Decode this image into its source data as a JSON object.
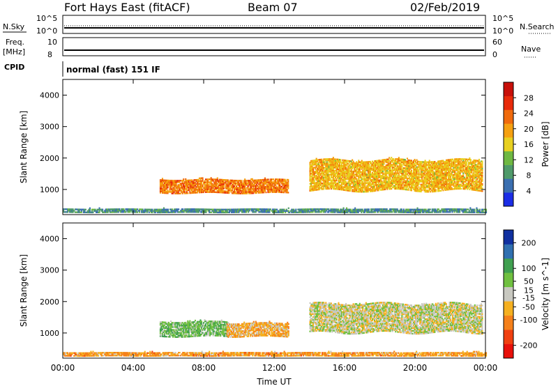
{
  "header": {
    "station": "Fort Hays East (fitACF)",
    "beam": "Beam 07",
    "date": "02/Feb/2019"
  },
  "params": {
    "nsky_label": "N.Sky",
    "nsky_ticks": [
      "10^5",
      "10^0"
    ],
    "nsearch_label": "N.Search",
    "freq_label_1": "Freq.",
    "freq_label_2": "[MHz]",
    "freq_ticks": [
      "10",
      "8"
    ],
    "nave_label": "Nave",
    "nave_ticks": [
      "60",
      "0"
    ],
    "cpid_label": "CPID",
    "cpid_value": "normal (fast) 151 IF"
  },
  "chart_data": [
    {
      "type": "heatmap",
      "panel": "power",
      "ylabel": "Slant Range [km]",
      "xlabel": "",
      "x_ticks": [
        "00:00",
        "04:00",
        "08:00",
        "12:00",
        "16:00",
        "20:00",
        "00:00"
      ],
      "x_hours": [
        0,
        4,
        8,
        12,
        16,
        20,
        24
      ],
      "y_ticks": [
        1000,
        2000,
        3000,
        4000
      ],
      "ylim": [
        200,
        4500
      ],
      "colorbar": {
        "label": "Power [dB]",
        "ticks": [
          "28",
          "24",
          "20",
          "16",
          "12",
          "8",
          "4"
        ],
        "tick_values": [
          28,
          24,
          20,
          16,
          12,
          8,
          4
        ],
        "range": [
          0,
          32
        ],
        "colors": [
          "#1b2de6",
          "#3b6fb0",
          "#4f9a6a",
          "#6fb842",
          "#e8d020",
          "#f5a010",
          "#f06a0c",
          "#e82a0a",
          "#c8100a"
        ]
      },
      "regions": [
        {
          "t0": 5.5,
          "t1": 12.8,
          "r0": 850,
          "r1": 1350,
          "level": 22
        },
        {
          "t0": 14.0,
          "t1": 23.8,
          "r0": 900,
          "r1": 2000,
          "level": 18
        },
        {
          "t0": 0.0,
          "t1": 24.0,
          "r0": 250,
          "r1": 400,
          "level": 8
        }
      ]
    },
    {
      "type": "heatmap",
      "panel": "velocity",
      "ylabel": "Slant Range [km]",
      "xlabel": "Time UT",
      "x_ticks": [
        "00:00",
        "04:00",
        "08:00",
        "12:00",
        "16:00",
        "20:00",
        "00:00"
      ],
      "x_hours": [
        0,
        4,
        8,
        12,
        16,
        20,
        24
      ],
      "y_ticks": [
        1000,
        2000,
        3000,
        4000
      ],
      "ylim": [
        200,
        4500
      ],
      "colorbar": {
        "label": "Velocity [m s^-1]",
        "ticks": [
          "200",
          "100",
          "50",
          "15",
          "-15",
          "-50",
          "-100",
          "-200"
        ],
        "tick_values": [
          200,
          100,
          50,
          15,
          -15,
          -50,
          -100,
          -200
        ],
        "range": [
          -250,
          250
        ],
        "colors": [
          "#e8100a",
          "#f04010",
          "#f5801a",
          "#f5b020",
          "#c8c8c0",
          "#70c040",
          "#40a050",
          "#3070b0",
          "#1030a0"
        ]
      },
      "regions": [
        {
          "t0": 5.5,
          "t1": 9.3,
          "r0": 850,
          "r1": 1400,
          "level": 60
        },
        {
          "t0": 9.3,
          "t1": 12.8,
          "r0": 850,
          "r1": 1350,
          "level": -60
        },
        {
          "t0": 14.0,
          "t1": 23.8,
          "r0": 950,
          "r1": 2000,
          "level": 0
        },
        {
          "t0": 0.0,
          "t1": 24.0,
          "r0": 250,
          "r1": 400,
          "level": -80
        }
      ]
    }
  ]
}
